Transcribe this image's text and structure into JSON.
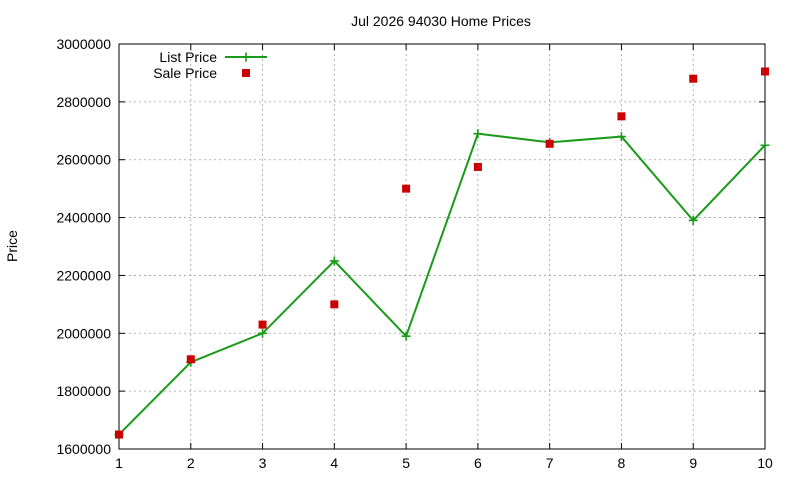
{
  "chart_data": {
    "type": "line",
    "title": "Jul 2026 94030 Home Prices",
    "xlabel": "",
    "ylabel": "Price",
    "x": [
      1,
      2,
      3,
      4,
      5,
      6,
      7,
      8,
      9,
      10
    ],
    "xlim": [
      1,
      10
    ],
    "ylim": [
      1600000,
      3000000
    ],
    "x_ticks": [
      "1",
      "2",
      "3",
      "4",
      "5",
      "6",
      "7",
      "8",
      "9",
      "10"
    ],
    "y_ticks": [
      "1600000",
      "1800000",
      "2000000",
      "2200000",
      "2400000",
      "2600000",
      "2800000",
      "3000000"
    ],
    "grid": true,
    "legend_position": "top-left",
    "series": [
      {
        "name": "List Price",
        "style": "line-with-plus-markers",
        "color": "#1a9a1a",
        "values": [
          1650000,
          1900000,
          2000000,
          2250000,
          1990000,
          2690000,
          2660000,
          2680000,
          2390000,
          2650000
        ]
      },
      {
        "name": "Sale Price",
        "style": "square-markers",
        "color": "#cc0000",
        "values": [
          1650000,
          1910000,
          2030000,
          2100000,
          2500000,
          2575000,
          2655000,
          2750000,
          2880000,
          2905000
        ]
      }
    ]
  }
}
